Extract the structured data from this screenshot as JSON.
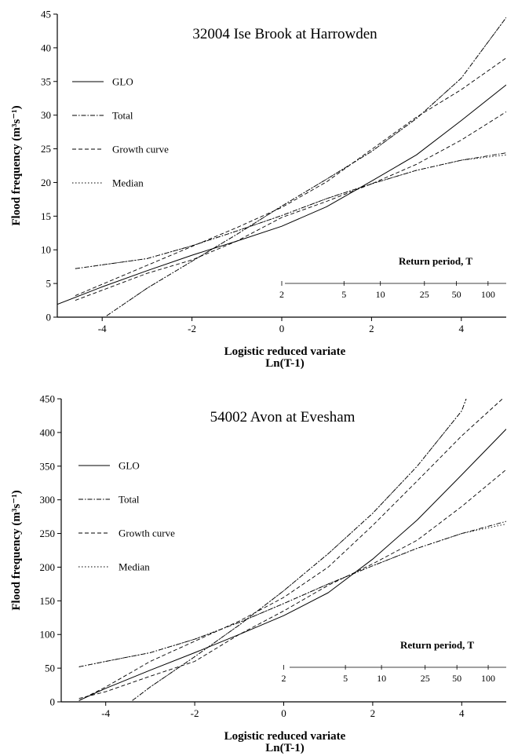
{
  "chart_data": [
    {
      "type": "line",
      "title": "32004 Ise Brook at Harrowden",
      "xlabel": "Logistic reduced variate",
      "xlabel2": "Ln(T-1)",
      "ylabel": "Flood frequency (m³s⁻¹)",
      "xlim": [
        -5,
        5
      ],
      "ylim": [
        0,
        45
      ],
      "xticks": [
        -4,
        -2,
        0,
        2,
        4
      ],
      "yticks": [
        0,
        5,
        10,
        15,
        20,
        25,
        30,
        35,
        40,
        45
      ],
      "legend": {
        "placement": "upper-left",
        "entries": [
          {
            "label": "GLO",
            "dash": "solid"
          },
          {
            "label": "Total",
            "dash": "dashdot"
          },
          {
            "label": "Growth curve",
            "dash": "dashed"
          },
          {
            "label": "Median",
            "dash": "dotted"
          }
        ]
      },
      "return_period_axis": {
        "title": "Return period, T",
        "labels": [
          "2",
          "5",
          "10",
          "25",
          "50",
          "100"
        ],
        "T": [
          2,
          5,
          10,
          25,
          50,
          100
        ]
      },
      "series": [
        {
          "name": "GLO",
          "dash": "solid",
          "x": [
            -5,
            -4,
            -3,
            -2,
            -1,
            0,
            1,
            2,
            3,
            4,
            5
          ],
          "y": [
            1.9,
            4.5,
            6.9,
            9.2,
            11.3,
            13.5,
            16.4,
            20.2,
            24.1,
            29.2,
            34.5
          ]
        },
        {
          "name": "Total upper",
          "dash": "dashdot",
          "x": [
            -3.9,
            -3,
            -2,
            -1,
            0,
            1,
            2,
            3,
            4,
            5
          ],
          "y": [
            0.2,
            4.3,
            8.3,
            12.3,
            16.5,
            20.5,
            24.6,
            29.5,
            35.5,
            44.5
          ]
        },
        {
          "name": "Total lower",
          "dash": "dashdot",
          "x": [
            -4.6,
            -3,
            -2,
            -1,
            0,
            1,
            2,
            3,
            4,
            5
          ],
          "y": [
            7.2,
            8.7,
            10.6,
            12.8,
            15.1,
            17.6,
            19.8,
            21.8,
            23.3,
            24.4
          ]
        },
        {
          "name": "Growth curve upper",
          "dash": "dashed",
          "x": [
            -4.6,
            -3,
            -2,
            -1,
            0,
            1,
            2,
            3,
            4,
            5
          ],
          "y": [
            3.2,
            7.7,
            10.5,
            13.3,
            16.3,
            20.1,
            24.9,
            29.7,
            33.8,
            38.5
          ]
        },
        {
          "name": "Growth curve lower",
          "dash": "dashed",
          "x": [
            -4.6,
            -3,
            -2,
            -1,
            0,
            1,
            2,
            3,
            4,
            5
          ],
          "y": [
            2.5,
            6.5,
            8.5,
            11.3,
            14.8,
            17.2,
            19.8,
            22.7,
            26.3,
            30.5
          ]
        },
        {
          "name": "Median upper",
          "dash": "dotted",
          "x": [
            -3.9,
            -3,
            -2,
            -1,
            0,
            1,
            2,
            3,
            4,
            5
          ],
          "y": [
            0.2,
            4.3,
            8.3,
            12.3,
            16.5,
            20.5,
            24.6,
            29.5,
            35.5,
            44.5
          ]
        },
        {
          "name": "Median lower",
          "dash": "dotted",
          "x": [
            -4.6,
            -3,
            -2,
            -1,
            0,
            1,
            2,
            3,
            4,
            5
          ],
          "y": [
            7.2,
            8.7,
            10.6,
            12.8,
            15.1,
            17.6,
            19.8,
            21.8,
            23.3,
            24.1
          ]
        }
      ]
    },
    {
      "type": "line",
      "title": "54002 Avon at Evesham",
      "xlabel": "Logistic reduced variate",
      "xlabel2": "Ln(T-1)",
      "ylabel": "Flood frequency (m³s⁻¹)",
      "xlim": [
        -5,
        5
      ],
      "ylim": [
        0,
        450
      ],
      "xticks": [
        -4,
        -2,
        0,
        2,
        4
      ],
      "yticks": [
        0,
        50,
        100,
        150,
        200,
        250,
        300,
        350,
        400,
        450
      ],
      "legend": {
        "placement": "upper-left",
        "entries": [
          {
            "label": "GLO",
            "dash": "solid"
          },
          {
            "label": "Total",
            "dash": "dashdot"
          },
          {
            "label": "Growth curve",
            "dash": "dashed"
          },
          {
            "label": "Median",
            "dash": "dotted"
          }
        ]
      },
      "return_period_axis": {
        "title": "Return period, T",
        "labels": [
          "2",
          "5",
          "10",
          "25",
          "50",
          "100"
        ],
        "T": [
          2,
          5,
          10,
          25,
          50,
          100
        ]
      },
      "series": [
        {
          "name": "GLO",
          "dash": "solid",
          "x": [
            -4.6,
            -4,
            -3,
            -2,
            -1,
            0,
            1,
            2,
            3,
            4,
            5
          ],
          "y": [
            2,
            20,
            47,
            73,
            100,
            128,
            162,
            212,
            270,
            337,
            405
          ]
        },
        {
          "name": "Total upper",
          "dash": "dashdot",
          "x": [
            -3.4,
            -3,
            -2,
            -1,
            0,
            1,
            2,
            3,
            4,
            4.1
          ],
          "y": [
            2,
            22,
            67,
            114,
            165,
            220,
            280,
            350,
            432,
            450
          ]
        },
        {
          "name": "Total lower",
          "dash": "dashdot",
          "x": [
            -4.6,
            -4,
            -3,
            -2,
            -1,
            0,
            1,
            2,
            3,
            4,
            5
          ],
          "y": [
            52,
            60,
            73,
            93,
            118,
            146,
            175,
            202,
            228,
            250,
            268
          ]
        },
        {
          "name": "Growth curve upper",
          "dash": "dashed",
          "x": [
            -4.6,
            -4,
            -3,
            -2,
            -1,
            0,
            1,
            2,
            3,
            4,
            5
          ],
          "y": [
            2,
            22,
            60,
            90,
            120,
            155,
            200,
            262,
            328,
            395,
            455
          ]
        },
        {
          "name": "Growth curve lower",
          "dash": "dashed",
          "x": [
            -4.6,
            -4,
            -3,
            -2,
            -1,
            0,
            1,
            2,
            3,
            4,
            5
          ],
          "y": [
            5,
            15,
            38,
            60,
            100,
            135,
            173,
            205,
            240,
            290,
            345
          ]
        },
        {
          "name": "Median upper",
          "dash": "dotted",
          "x": [
            -3.4,
            -3,
            -2,
            -1,
            0,
            1,
            2,
            3,
            4,
            4.1
          ],
          "y": [
            2,
            22,
            67,
            114,
            165,
            220,
            280,
            350,
            432,
            450
          ]
        },
        {
          "name": "Median lower",
          "dash": "dotted",
          "x": [
            -4.6,
            -4,
            -3,
            -2,
            -1,
            0,
            1,
            2,
            3,
            4,
            5
          ],
          "y": [
            52,
            60,
            73,
            93,
            118,
            146,
            175,
            202,
            228,
            250,
            264
          ]
        }
      ]
    }
  ]
}
